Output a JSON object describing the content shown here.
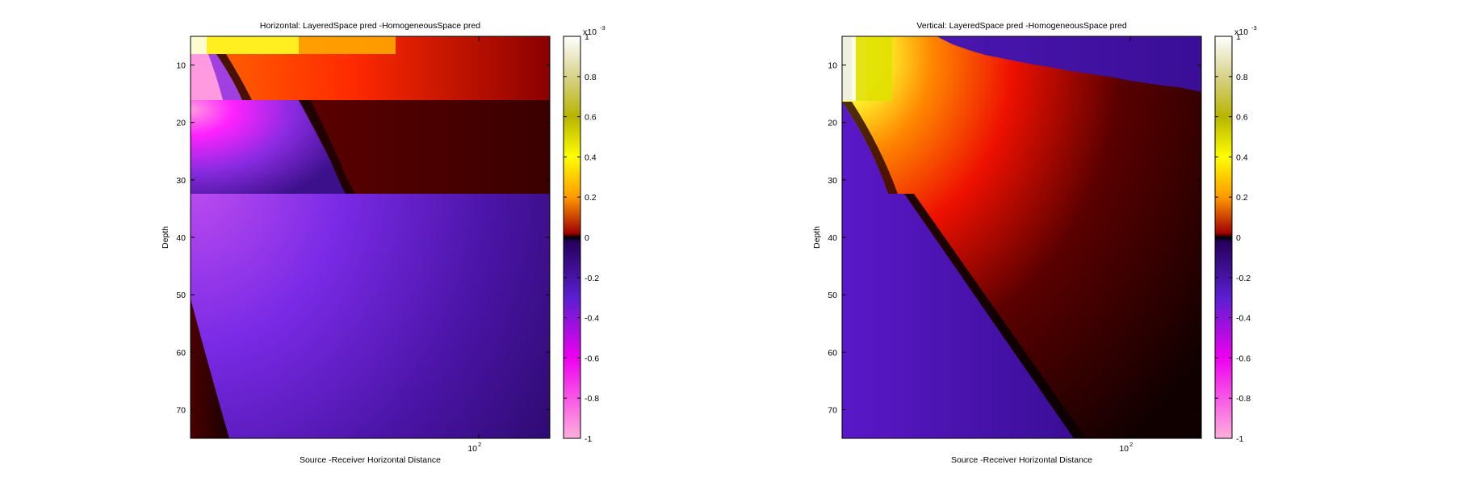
{
  "chart_data": [
    {
      "type": "heatmap",
      "title": "Horizontal: LayeredSpace pred -HomogeneousSpace pred",
      "xlabel": "Source -Receiver Horizontal Distance",
      "ylabel": "Depth",
      "x_scale": "log",
      "x_ticks": [
        {
          "value": 100,
          "base": "10",
          "exp": "2"
        }
      ],
      "ylim": [
        75,
        5
      ],
      "y_ticks": [
        10,
        20,
        30,
        40,
        50,
        60,
        70
      ],
      "colorbar": {
        "range": [
          -1,
          1
        ],
        "multiplier": {
          "base": "x10",
          "exp": "-3"
        },
        "ticks": [
          "1",
          "0.8",
          "0.6",
          "0.4",
          "0.2",
          "0",
          "-0.2",
          "-0.4",
          "-0.6",
          "-0.8",
          "-1"
        ],
        "colormap": "diverging: pink-magenta-purple-black (negative) / black-red-orange-yellow-white (positive)"
      },
      "features": "surface layer (depth 5-16) strongly positive orange-red; layer 16-32 negative magenta-purple near source then dark red further out; below depth 32 negative purple fading with distance"
    },
    {
      "type": "heatmap",
      "title": "Vertical: LayeredSpace pred -HomogeneousSpace pred",
      "xlabel": "Source -Receiver Horizontal Distance",
      "ylabel": "Depth",
      "x_scale": "log",
      "x_ticks": [
        {
          "value": 100,
          "base": "10",
          "exp": "2"
        }
      ],
      "ylim": [
        75,
        5
      ],
      "y_ticks": [
        10,
        20,
        30,
        40,
        50,
        60,
        70
      ],
      "colorbar": {
        "range": [
          -1,
          1
        ],
        "multiplier": {
          "base": "x10",
          "exp": "-3"
        },
        "ticks": [
          "1",
          "0.8",
          "0.6",
          "0.4",
          "0.2",
          "0",
          "-0.2",
          "-0.4",
          "-0.6",
          "-0.8",
          "-1"
        ],
        "colormap": "diverging: pink-magenta-purple-black (negative) / black-red-orange-yellow-white (positive)"
      },
      "features": "shallow near-source region strongly positive yellow-white; positive red plume extending to depth 32 fading to black; negative purple wedge at depth below 16 near source; negative purple band at top far from source"
    }
  ]
}
